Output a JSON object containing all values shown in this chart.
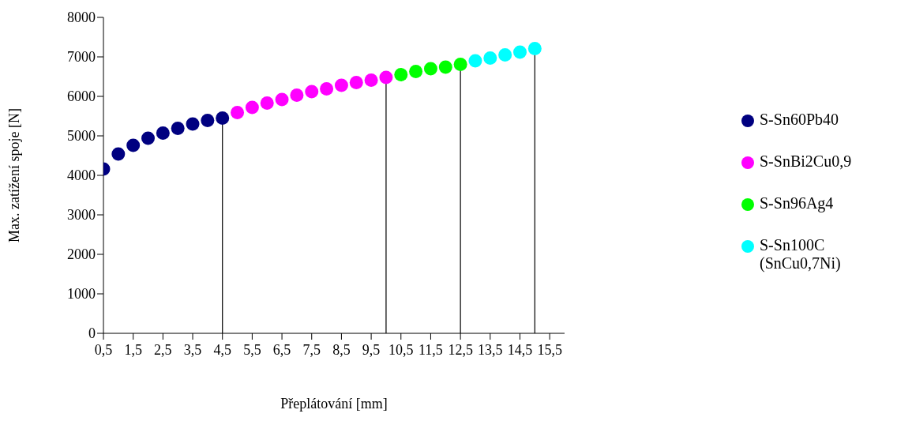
{
  "chart_data": {
    "type": "scatter",
    "xlabel": "Přeplátování [mm]",
    "ylabel": "Max. zatížení spoje [N]",
    "series": [
      {
        "name": "S-Sn60Pb40",
        "color": "#000080",
        "x": [
          0.5,
          1,
          1.5,
          2,
          2.5,
          3,
          3.5,
          4,
          4.5
        ],
        "values": [
          4160,
          4540,
          4760,
          4940,
          5070,
          5190,
          5300,
          5390,
          5450
        ]
      },
      {
        "name": "S-SnBi2Cu0,9",
        "color": "#ff00ff",
        "x": [
          5,
          5.5,
          6,
          6.5,
          7,
          7.5,
          8,
          8.5,
          9,
          9.5,
          10
        ],
        "values": [
          5590,
          5720,
          5830,
          5920,
          6030,
          6120,
          6190,
          6280,
          6350,
          6410,
          6480
        ]
      },
      {
        "name": "S-Sn96Ag4",
        "color": "#00ff00",
        "x": [
          10.5,
          11,
          11.5,
          12,
          12.5
        ],
        "values": [
          6550,
          6630,
          6700,
          6740,
          6810
        ]
      },
      {
        "name": "S-Sn100C (SnCu0,7Ni)",
        "color": "#00ffff",
        "x": [
          13,
          13.5,
          14,
          14.5,
          15
        ],
        "values": [
          6900,
          6970,
          7050,
          7120,
          7210
        ]
      }
    ],
    "xlim": [
      0.5,
      16
    ],
    "xticks": [
      {
        "value": 0.5,
        "label": "0,5"
      },
      {
        "value": 1.5,
        "label": "1,5"
      },
      {
        "value": 2.5,
        "label": "2,5"
      },
      {
        "value": 3.5,
        "label": "3,5"
      },
      {
        "value": 4.5,
        "label": "4,5"
      },
      {
        "value": 5.5,
        "label": "5,5"
      },
      {
        "value": 6.5,
        "label": "6,5"
      },
      {
        "value": 7.5,
        "label": "7,5"
      },
      {
        "value": 8.5,
        "label": "8,5"
      },
      {
        "value": 9.5,
        "label": "9,5"
      },
      {
        "value": 10.5,
        "label": "10,5"
      },
      {
        "value": 11.5,
        "label": "11,5"
      },
      {
        "value": 12.5,
        "label": "12,5"
      },
      {
        "value": 13.5,
        "label": "13,5"
      },
      {
        "value": 14.5,
        "label": "14,5"
      },
      {
        "value": 15.5,
        "label": "15,5"
      }
    ],
    "ylim": [
      0,
      8000
    ],
    "yticks": [
      0,
      1000,
      2000,
      3000,
      4000,
      5000,
      6000,
      7000,
      8000
    ],
    "ref_lines": [
      {
        "axis": "x",
        "value": 4.5,
        "color": "#000000"
      },
      {
        "axis": "x",
        "value": 10,
        "color": "#000000"
      },
      {
        "axis": "x",
        "value": 12.5,
        "color": "#000000"
      },
      {
        "axis": "x",
        "value": 15,
        "color": "#000000"
      }
    ],
    "grid": false,
    "legend": "right",
    "marker": "circle"
  }
}
